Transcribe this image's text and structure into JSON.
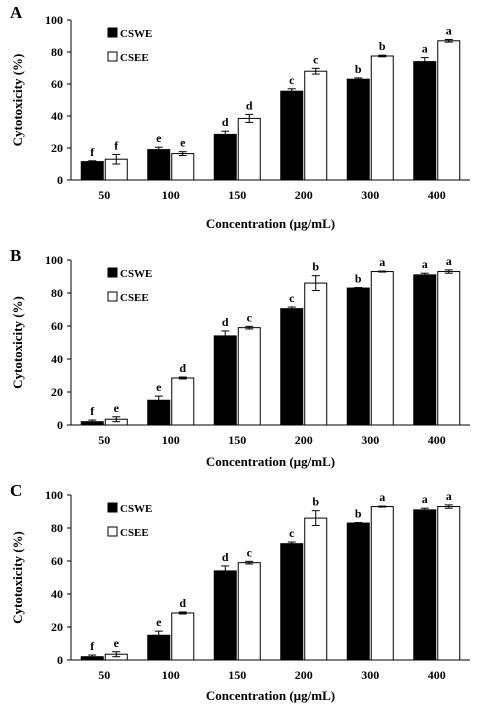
{
  "colors": {
    "series_1": "#000000",
    "series_2": "#ffffff",
    "stroke": "#000000"
  },
  "chart_data": [
    {
      "type": "bar",
      "panel": "A",
      "categories": [
        "50",
        "100",
        "150",
        "200",
        "300",
        "400"
      ],
      "series": [
        {
          "name": "CSWE",
          "values": [
            11.5,
            19,
            28.5,
            55.5,
            63,
            74
          ],
          "errors": [
            0.5,
            1.5,
            2,
            1.5,
            0.8,
            2.5
          ],
          "letters": [
            "f",
            "e",
            "d",
            "c",
            "b",
            "a"
          ]
        },
        {
          "name": "CSEE",
          "values": [
            13,
            16.5,
            38.5,
            68,
            77.5,
            87
          ],
          "errors": [
            3,
            1.2,
            2.5,
            1.8,
            0.5,
            0.8
          ],
          "letters": [
            "f",
            "e",
            "d",
            "c",
            "b",
            "a"
          ]
        }
      ],
      "xlabel": "Concentration (µg/mL)",
      "ylabel": "Cytotoxicity (%)",
      "ylim": [
        0,
        100
      ],
      "yticks": [
        "0",
        "20",
        "40",
        "60",
        "80",
        "100"
      ],
      "legend": "top-left",
      "grid": false
    },
    {
      "type": "bar",
      "panel": "B",
      "categories": [
        "50",
        "100",
        "150",
        "200",
        "300",
        "400"
      ],
      "series": [
        {
          "name": "CSWE",
          "values": [
            2,
            15,
            54,
            70.5,
            83,
            91
          ],
          "errors": [
            1,
            2.5,
            3,
            1,
            0.3,
            1
          ],
          "letters": [
            "f",
            "e",
            "d",
            "c",
            "b",
            "a"
          ]
        },
        {
          "name": "CSEE",
          "values": [
            3.5,
            28.5,
            59,
            86,
            93,
            93
          ],
          "errors": [
            1.5,
            0.6,
            0.8,
            4.5,
            0.3,
            1
          ],
          "letters": [
            "e",
            "d",
            "c",
            "b",
            "a",
            "a"
          ]
        }
      ],
      "xlabel": "Concentration (µg/mL)",
      "ylabel": "Cytotoxicity (%)",
      "ylim": [
        0,
        100
      ],
      "yticks": [
        "0",
        "20",
        "40",
        "60",
        "80",
        "100"
      ],
      "legend": "top-left",
      "grid": false
    },
    {
      "type": "bar",
      "panel": "C",
      "categories": [
        "50",
        "100",
        "150",
        "200",
        "300",
        "400"
      ],
      "series": [
        {
          "name": "CSWE",
          "values": [
            2,
            15,
            54,
            70.5,
            83,
            91
          ],
          "errors": [
            1,
            2.5,
            3,
            1,
            0.3,
            1
          ],
          "letters": [
            "f",
            "e",
            "d",
            "c",
            "b",
            "a"
          ]
        },
        {
          "name": "CSEE",
          "values": [
            3.5,
            28.5,
            59,
            86,
            93,
            93
          ],
          "errors": [
            1.5,
            0.6,
            0.8,
            4.5,
            0.3,
            1
          ],
          "letters": [
            "e",
            "d",
            "c",
            "b",
            "a",
            "a"
          ]
        }
      ],
      "xlabel": "Concentration (µg/mL)",
      "ylabel": "Cytotoxicity (%)",
      "ylim": [
        0,
        100
      ],
      "yticks": [
        "0",
        "20",
        "40",
        "60",
        "80",
        "100"
      ],
      "legend": "top-left",
      "grid": false
    }
  ]
}
